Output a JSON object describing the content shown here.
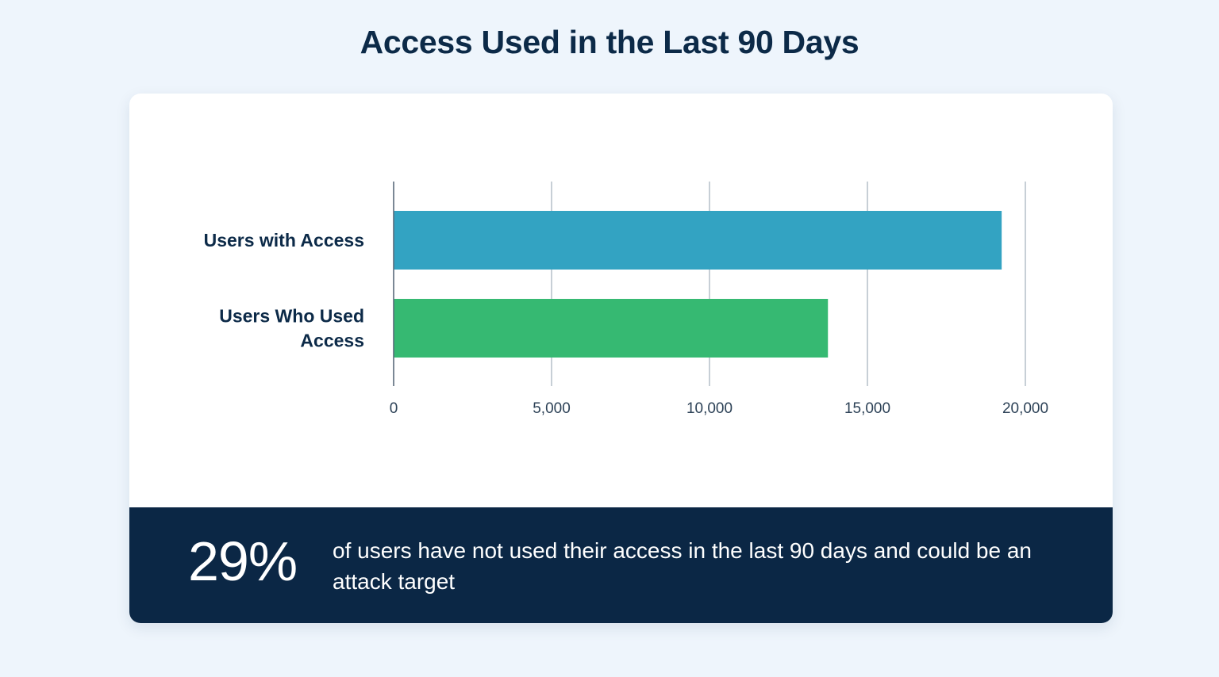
{
  "title": "Access Used in the Last 90 Days",
  "chart_data": {
    "type": "bar",
    "orientation": "horizontal",
    "title": "Access Used in the Last 90 Days",
    "categories": [
      "Users with Access",
      "Users Who Used Access"
    ],
    "category_lines": [
      [
        "Users with Access"
      ],
      [
        "Users Who Used",
        "Access"
      ]
    ],
    "values": [
      19250,
      13750
    ],
    "colors": [
      "#33a3c2",
      "#36b972"
    ],
    "xlim": [
      0,
      20000
    ],
    "xticks": [
      0,
      5000,
      10000,
      15000,
      20000
    ],
    "xtick_labels": [
      "0",
      "5,000",
      "10,000",
      "15,000",
      "20,000"
    ],
    "xlabel": "",
    "ylabel": "",
    "grid": true,
    "legend": "none"
  },
  "callout": {
    "stat": "29%",
    "text": "of users have not used their access in the last 90 days and could be an attack target"
  },
  "colors": {
    "background": "#eef5fc",
    "banner": "#0b2745",
    "text_dark": "#0c2a48",
    "grid": "#a9b5bf"
  }
}
